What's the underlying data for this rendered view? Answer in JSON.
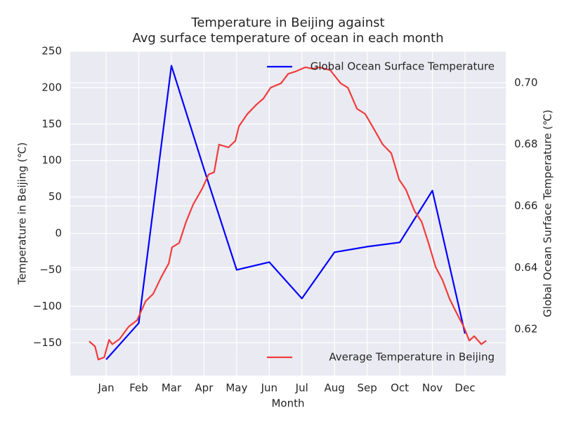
{
  "chart_data": {
    "type": "line",
    "title": [
      "Temperature in Beijing against",
      "Avg surface temperature of  ocean in each month"
    ],
    "x_label": "Month",
    "y_label": "Temperature in Beijing (℃)",
    "y2_label": "Global Ocean Surface Temperature (℃)",
    "xlim": [
      -0.1,
      13.25
    ],
    "xticks": [
      {
        "value": 1,
        "label": "Jan"
      },
      {
        "value": 2,
        "label": "Feb"
      },
      {
        "value": 3,
        "label": "Mar"
      },
      {
        "value": 4,
        "label": "Apr"
      },
      {
        "value": 5,
        "label": "May"
      },
      {
        "value": 6,
        "label": "Jun"
      },
      {
        "value": 7,
        "label": "Jul"
      },
      {
        "value": 8,
        "label": "Aug"
      },
      {
        "value": 9,
        "label": "Sep"
      },
      {
        "value": 10,
        "label": "Oct"
      },
      {
        "value": 11,
        "label": "Nov"
      },
      {
        "value": 12,
        "label": "Dec"
      }
    ],
    "ylim": [
      -195,
      250
    ],
    "yticks": [
      {
        "value": -150,
        "label": "−150"
      },
      {
        "value": -100,
        "label": "−100"
      },
      {
        "value": -50,
        "label": "−50"
      },
      0,
      50,
      100,
      150,
      200,
      250
    ],
    "y2lim": [
      0.605,
      0.7102
    ],
    "y2ticks": [
      0.62,
      0.64,
      0.66,
      0.68,
      {
        "value": 0.7,
        "label": "0.70"
      }
    ],
    "grid": true,
    "series": [
      {
        "name": "Global Ocean Surface Temperature",
        "color": "#0000ff",
        "axis": "y2",
        "legend": "upper right",
        "x": [
          1,
          2,
          3,
          4,
          5,
          6,
          7,
          8,
          9,
          10,
          11,
          12
        ],
        "values": [
          0.6102,
          0.622,
          0.7055,
          0.672,
          0.6393,
          0.6418,
          0.63,
          0.645,
          0.6468,
          0.6482,
          0.665,
          0.6186
        ]
      },
      {
        "name": "Average Temperature in Beijing",
        "color": "#f03c3c",
        "axis": "y",
        "legend": "lower right",
        "x": [
          0.48,
          0.66,
          0.76,
          0.94,
          1.09,
          1.19,
          1.41,
          1.69,
          1.95,
          2.21,
          2.44,
          2.7,
          2.92,
          3.02,
          3.24,
          3.45,
          3.67,
          3.95,
          4.14,
          4.31,
          4.46,
          4.75,
          4.96,
          5.07,
          5.33,
          5.61,
          5.82,
          6.04,
          6.36,
          6.58,
          6.79,
          7.11,
          7.33,
          7.54,
          7.87,
          8.19,
          8.41,
          8.69,
          8.94,
          9.16,
          9.48,
          9.74,
          9.98,
          10.19,
          10.45,
          10.67,
          10.88,
          11.1,
          11.31,
          11.53,
          11.74,
          11.96,
          12.13,
          12.28,
          12.5,
          12.65
        ],
        "values": [
          -148,
          -155,
          -173,
          -170,
          -146,
          -152,
          -145,
          -128,
          -119,
          -93,
          -83,
          -59,
          -41,
          -19,
          -13,
          16,
          40,
          62,
          81,
          84,
          122,
          118,
          127,
          147,
          164,
          177,
          185,
          200,
          206,
          219,
          222,
          228,
          226,
          228,
          224,
          206,
          200,
          171,
          164,
          147,
          122,
          110,
          74,
          60,
          31,
          16,
          -13,
          -46,
          -64,
          -90,
          -109,
          -128,
          -147,
          -141,
          -152,
          -147
        ]
      }
    ]
  }
}
